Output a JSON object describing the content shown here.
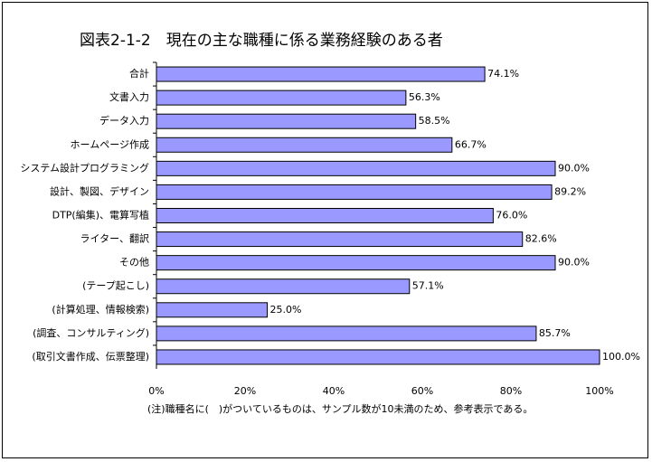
{
  "chart_data": {
    "type": "bar",
    "orientation": "horizontal",
    "title": "図表2-1-2　現在の主な職種に係る業務経験のある者",
    "categories": [
      "合計",
      "文書入力",
      "データ入力",
      "ホームページ作成",
      "システム設計プログラミング",
      "設計、製図、デザイン",
      "DTP(編集)、電算写植",
      "ライター、翻訳",
      "その他",
      "(テープ起こし)",
      "(計算処理、情報検索)",
      "(調査、コンサルティング)",
      "(取引文書作成、伝票整理)"
    ],
    "values": [
      74.1,
      56.3,
      58.5,
      66.7,
      90.0,
      89.2,
      76.0,
      82.6,
      90.0,
      57.1,
      25.0,
      85.7,
      100.0
    ],
    "value_labels": [
      "74.1%",
      "56.3%",
      "58.5%",
      "66.7%",
      "90.0%",
      "89.2%",
      "76.0%",
      "82.6%",
      "90.0%",
      "57.1%",
      "25.0%",
      "85.7%",
      "100.0%"
    ],
    "color": "#9999ff",
    "xlim": [
      0,
      100
    ],
    "xticks": [
      {
        "value": 0,
        "label": "0%"
      },
      {
        "value": 20,
        "label": "20%"
      },
      {
        "value": 40,
        "label": "40%"
      },
      {
        "value": 60,
        "label": "60%"
      },
      {
        "value": 80,
        "label": "80%"
      },
      {
        "value": 100,
        "label": "100%"
      }
    ],
    "note": "(注)職種名に(　)がついているものは、サンプル数が10未満のため、参考表示である。"
  }
}
